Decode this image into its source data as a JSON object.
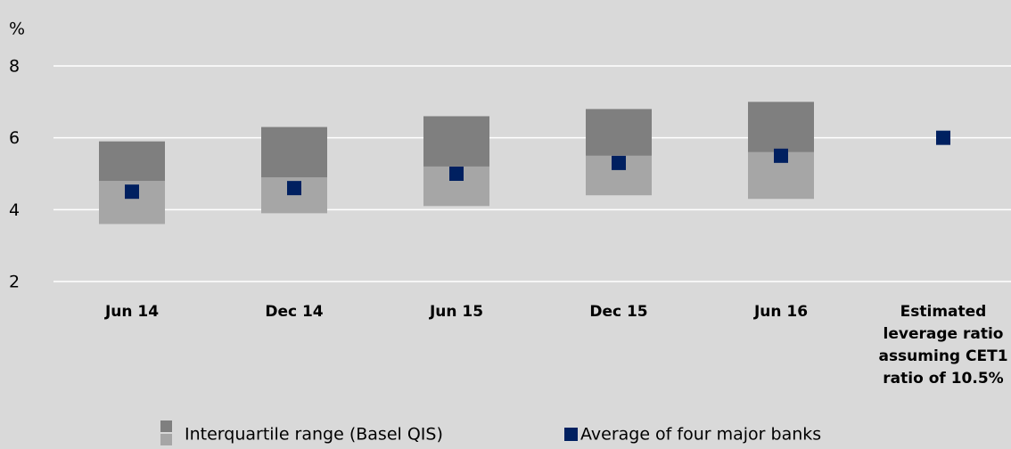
{
  "chart_data": {
    "type": "range",
    "y_label": "%",
    "categories": [
      "Jun 14",
      "Dec 14",
      "Jun 15",
      "Dec 15",
      "Jun 16",
      "Estimated leverage ratio assuming CET1 ratio of 10.5%"
    ],
    "range": {
      "name": "Interquartile range (Basel QIS)",
      "colors": [
        "#a6a6a6",
        "#7f7f7f"
      ],
      "low": [
        3.6,
        3.9,
        4.1,
        4.4,
        4.3,
        null
      ],
      "median": [
        4.8,
        4.9,
        5.2,
        5.5,
        5.6,
        null
      ],
      "high": [
        5.9,
        6.3,
        6.6,
        6.8,
        7.0,
        null
      ]
    },
    "series": [
      {
        "name": "Average of four major banks",
        "color": "#002060",
        "values": [
          4.5,
          4.6,
          5.0,
          5.3,
          5.5,
          6.0
        ]
      }
    ],
    "ylim": [
      2,
      8
    ],
    "yticks": [
      2,
      4,
      6,
      8
    ],
    "grid": true,
    "background": "#d9d9d9",
    "legend": "bottom"
  }
}
